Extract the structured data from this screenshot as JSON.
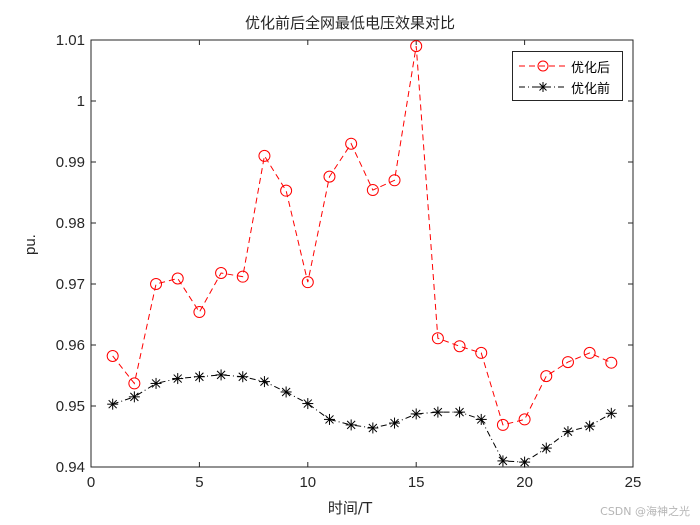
{
  "chart_data": {
    "type": "line",
    "title": "优化前后全网最低电压效果对比",
    "xlabel": "时间/T",
    "ylabel": "pu.",
    "xlim": [
      0,
      25
    ],
    "ylim": [
      0.94,
      1.01
    ],
    "xticks": [
      0,
      5,
      10,
      15,
      20,
      25
    ],
    "yticks": [
      0.94,
      0.95,
      0.96,
      0.97,
      0.98,
      0.99,
      1,
      1.01
    ],
    "xtick_labels": [
      "0",
      "5",
      "10",
      "15",
      "20",
      "25"
    ],
    "ytick_labels": [
      "0.94",
      "0.95",
      "0.96",
      "0.97",
      "0.98",
      "0.99",
      "1",
      "1.01"
    ],
    "grid": false,
    "legend_position": "upper right",
    "x": [
      1,
      2,
      3,
      4,
      5,
      6,
      7,
      8,
      9,
      10,
      11,
      12,
      13,
      14,
      15,
      16,
      17,
      18,
      19,
      20,
      21,
      22,
      23,
      24
    ],
    "series": [
      {
        "name": "优化后",
        "color": "#ff0000",
        "linestyle": "dashed",
        "marker": "circle",
        "values": [
          0.9582,
          0.9537,
          0.97,
          0.9709,
          0.9654,
          0.9718,
          0.9712,
          0.991,
          0.9853,
          0.9703,
          0.9876,
          0.993,
          0.9854,
          0.987,
          1.009,
          0.9611,
          0.9598,
          0.9587,
          0.9469,
          0.9478,
          0.9549,
          0.9572,
          0.9587,
          0.9571
        ]
      },
      {
        "name": "优化前",
        "color": "#000000",
        "linestyle": "dashdot",
        "marker": "asterisk",
        "values": [
          0.9503,
          0.9515,
          0.9537,
          0.9545,
          0.9548,
          0.9551,
          0.9548,
          0.954,
          0.9523,
          0.9504,
          0.9478,
          0.9469,
          0.9464,
          0.9472,
          0.9487,
          0.949,
          0.949,
          0.9478,
          0.941,
          0.9408,
          0.9431,
          0.9458,
          0.9467,
          0.9488
        ]
      }
    ]
  },
  "legend": {
    "items": [
      {
        "label": "优化后"
      },
      {
        "label": "优化前"
      }
    ]
  },
  "watermark": "CSDN @海神之光"
}
